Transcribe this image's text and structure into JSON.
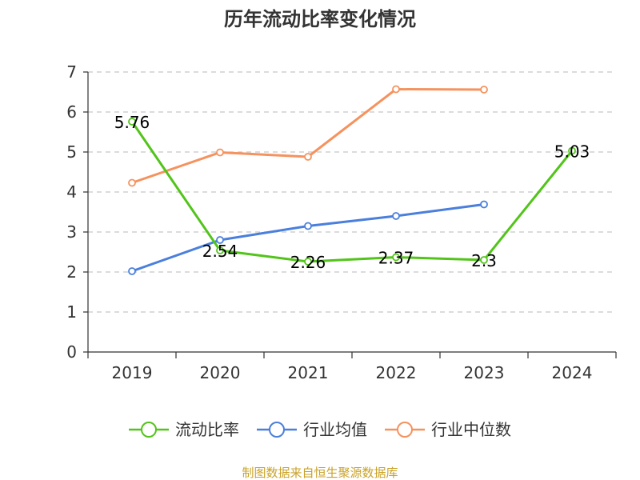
{
  "title": "历年流动比率变化情况",
  "source_note": "制图数据来自恒生聚源数据库",
  "colors": {
    "text": "#333333",
    "axis": "#333333",
    "grid": "#c8c8c8",
    "source": "#c9a227"
  },
  "chart_data": {
    "type": "line",
    "categories": [
      "2019",
      "2020",
      "2021",
      "2022",
      "2023",
      "2024"
    ],
    "ylim": [
      0,
      7
    ],
    "yticks": [
      0,
      1,
      2,
      3,
      4,
      5,
      6,
      7
    ],
    "grid": "horizontal dashed",
    "legend_position": "bottom",
    "series": [
      {
        "name": "流动比率",
        "color": "#52c41a",
        "values": [
          5.76,
          2.54,
          2.26,
          2.37,
          2.3,
          5.03
        ],
        "labels": [
          "5.76",
          "2.54",
          "2.26",
          "2.37",
          "2.3",
          "5.03"
        ]
      },
      {
        "name": "行业均值",
        "color": "#4a7fdc",
        "values": [
          2.02,
          2.8,
          3.15,
          3.4,
          3.69,
          null
        ]
      },
      {
        "name": "行业中位数",
        "color": "#f5925e",
        "values": [
          4.23,
          4.99,
          4.88,
          6.57,
          6.56,
          null
        ]
      }
    ]
  }
}
